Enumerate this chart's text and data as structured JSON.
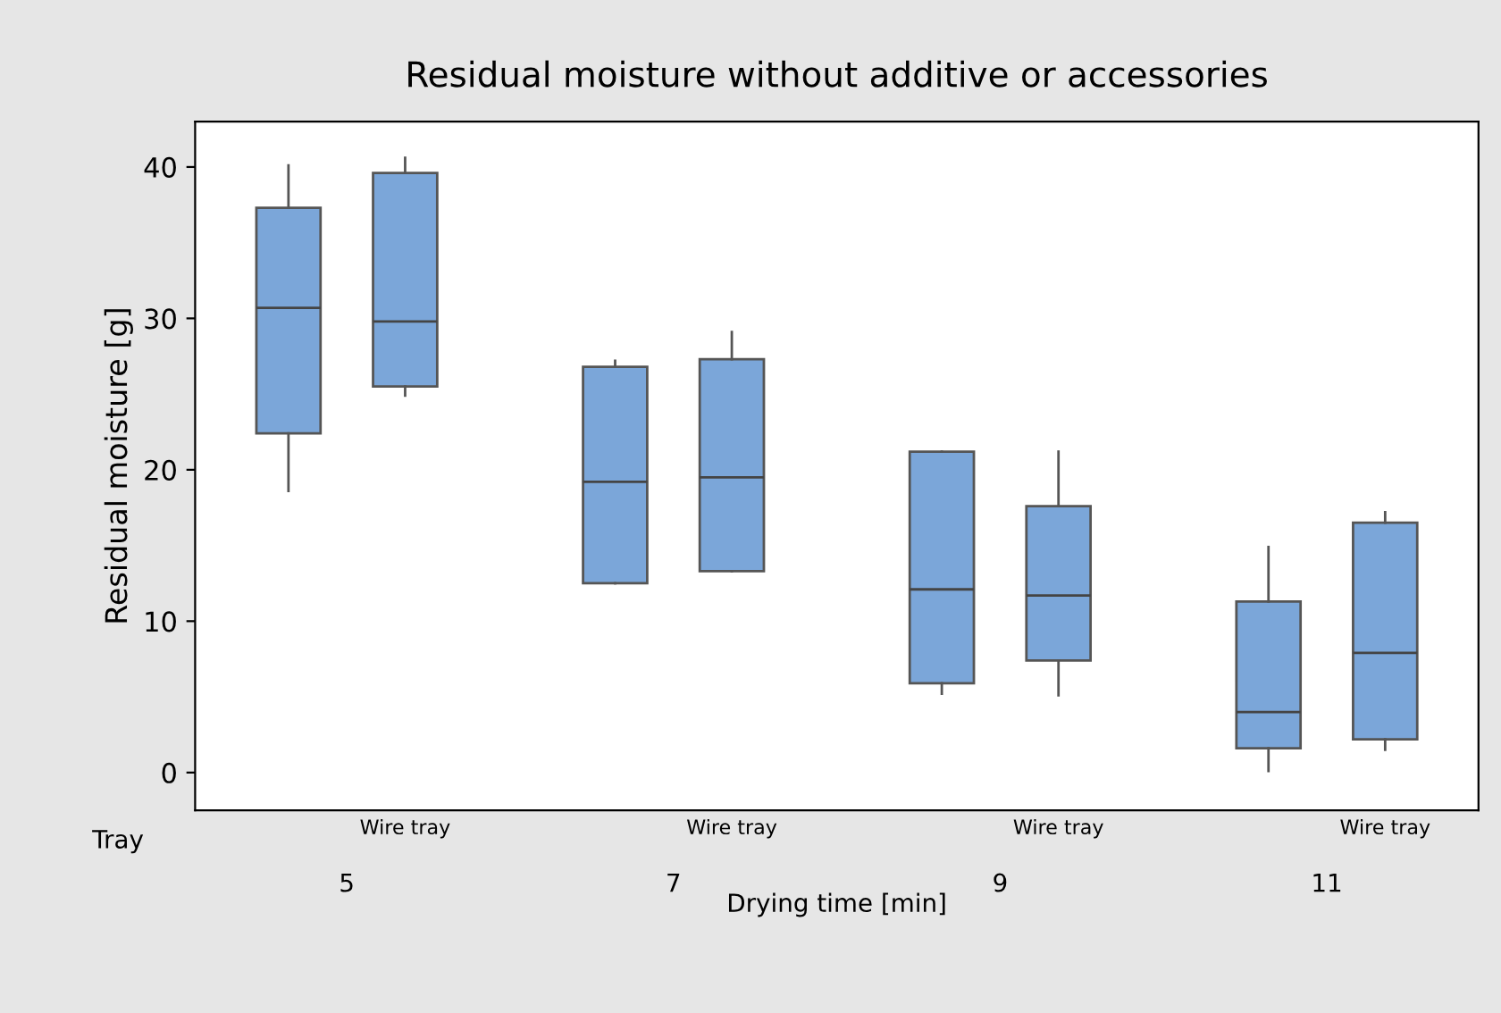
{
  "chart_data": {
    "type": "box",
    "title": "Residual moisture without additive or accessories",
    "xlabel": "Drying time [min]",
    "ylabel": "Residual moisture [g]",
    "categories": [
      null,
      "Wire tray",
      null,
      "Wire tray",
      null,
      "Wire tray",
      null,
      "Wire tray"
    ],
    "annotations": [
      "Tray",
      "5",
      "7",
      "9",
      "11"
    ],
    "color": "#7ba6d9",
    "boxes": [
      {
        "low": 18.6,
        "q1": 22.4,
        "median": 30.7,
        "q3": 37.3,
        "high": 40.1
      },
      {
        "low": 24.9,
        "q1": 25.5,
        "median": 29.8,
        "q3": 39.6,
        "high": 40.6
      },
      {
        "low": 12.5,
        "q1": 12.5,
        "median": 19.2,
        "q3": 26.8,
        "high": 27.2
      },
      {
        "low": 13.3,
        "q1": 13.3,
        "median": 19.5,
        "q3": 27.3,
        "high": 29.1
      },
      {
        "low": 5.2,
        "q1": 5.9,
        "median": 12.1,
        "q3": 21.2,
        "high": 21.2
      },
      {
        "low": 5.1,
        "q1": 7.4,
        "median": 11.7,
        "q3": 17.6,
        "high": 21.2
      },
      {
        "low": 0.1,
        "q1": 1.6,
        "median": 4.0,
        "q3": 11.3,
        "high": 14.9
      },
      {
        "low": 1.5,
        "q1": 2.2,
        "median": 7.9,
        "q3": 16.5,
        "high": 17.2
      }
    ],
    "ylim": [
      -2.5,
      43
    ],
    "yticks": [
      0,
      10,
      20,
      30,
      40
    ],
    "grid": false,
    "legend": false
  }
}
